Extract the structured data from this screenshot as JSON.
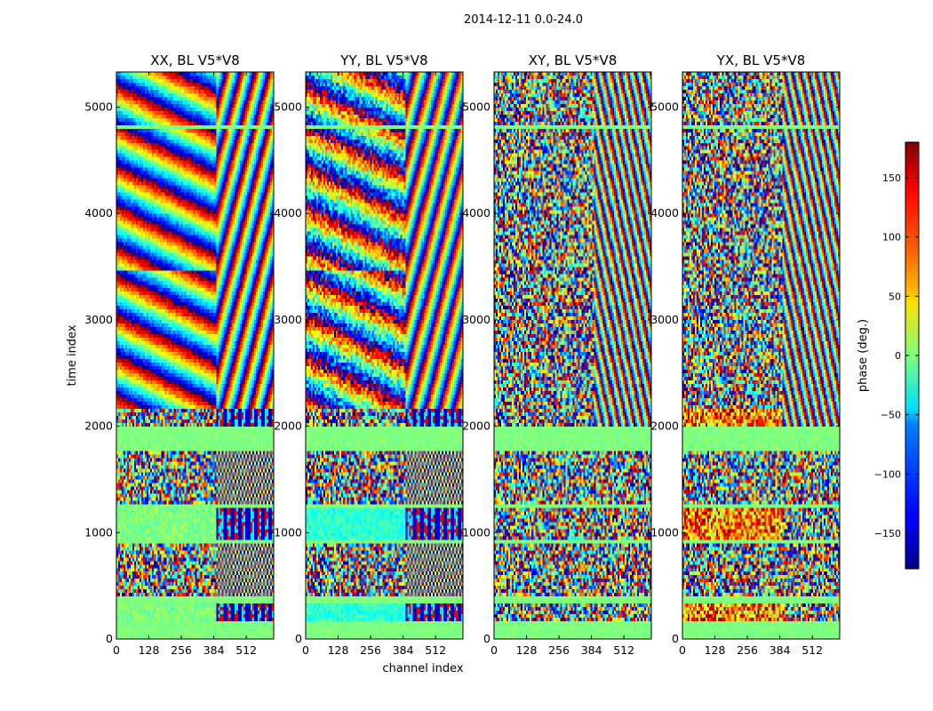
{
  "chart_data": {
    "type": "heatmap",
    "title": "2014-12-11 0.0-24.0",
    "xlabel": "channel index",
    "ylabel": "time index",
    "colorbar_label": "phase (deg.)",
    "colormap": "jet",
    "xlim": [
      0,
      620
    ],
    "ylim": [
      0,
      5330
    ],
    "x_ticks": [
      0,
      128,
      256,
      384,
      512
    ],
    "y_ticks": [
      0,
      1000,
      2000,
      3000,
      4000,
      5000
    ],
    "colorbar_range": [
      -180,
      180
    ],
    "colorbar_ticks": [
      150,
      100,
      50,
      0,
      -50,
      -100,
      -150
    ],
    "flagged_time_ranges": [
      [
        0,
        180
      ],
      [
        340,
        400
      ],
      [
        900,
        930
      ],
      [
        1240,
        1270
      ],
      [
        1770,
        2000
      ],
      [
        3450,
        3480
      ],
      [
        4800,
        4840
      ]
    ],
    "panels": [
      {
        "title": "XX, BL V5*V8",
        "pol": "XX"
      },
      {
        "title": "YY, BL V5*V8",
        "pol": "YY"
      },
      {
        "title": "XY, BL V5*V8",
        "pol": "XY"
      },
      {
        "title": "YX, BL V5*V8",
        "pol": "YX"
      }
    ]
  }
}
